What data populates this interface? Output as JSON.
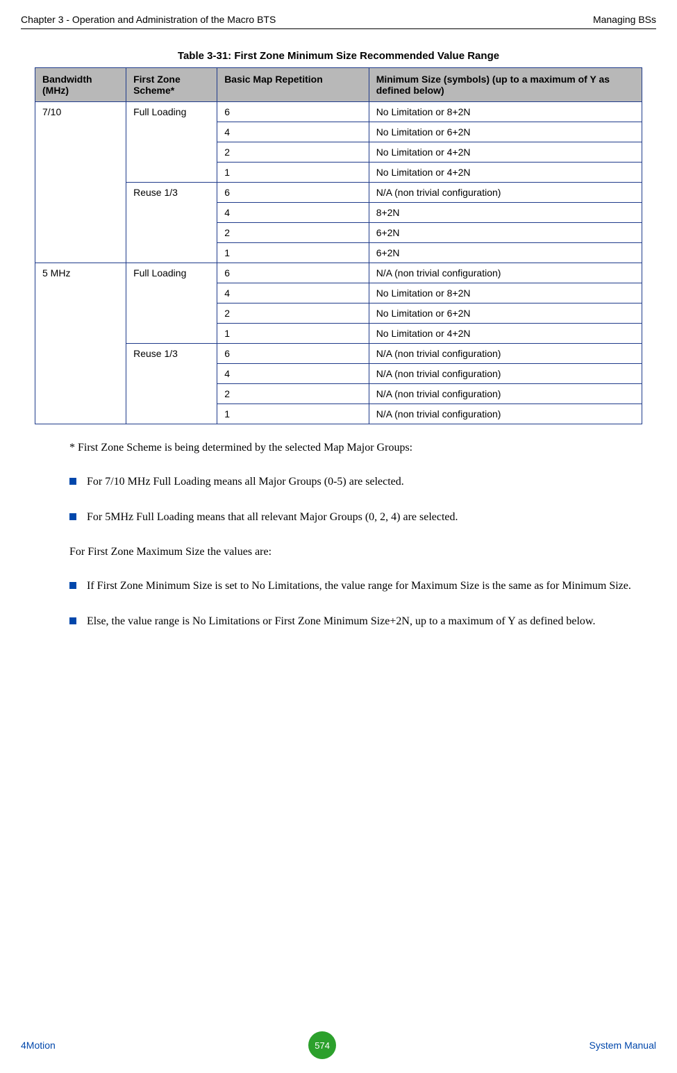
{
  "header": {
    "left": "Chapter 3 - Operation and Administration of the Macro BTS",
    "right": "Managing BSs"
  },
  "table": {
    "caption": "Table 3-31: First Zone Minimum Size Recommended Value Range",
    "headers": {
      "bandwidth": "Bandwidth (MHz)",
      "scheme": "First Zone Scheme*",
      "repetition": "Basic Map Repetition",
      "minsize": "Minimum Size (symbols) (up to a maximum of Y as defined below)"
    },
    "groups": [
      {
        "bandwidth": "7/10",
        "schemes": [
          {
            "name": "Full Loading",
            "rows": [
              {
                "rep": "6",
                "min": "No Limitation or 8+2N"
              },
              {
                "rep": "4",
                "min": "No Limitation or 6+2N"
              },
              {
                "rep": "2",
                "min": "No Limitation or 4+2N"
              },
              {
                "rep": "1",
                "min": "No Limitation or 4+2N"
              }
            ]
          },
          {
            "name": "Reuse 1/3",
            "rows": [
              {
                "rep": "6",
                "min": "N/A (non trivial configuration)"
              },
              {
                "rep": "4",
                "min": "8+2N"
              },
              {
                "rep": "2",
                "min": "6+2N"
              },
              {
                "rep": "1",
                "min": "6+2N"
              }
            ]
          }
        ]
      },
      {
        "bandwidth": "5 MHz",
        "schemes": [
          {
            "name": "Full Loading",
            "rows": [
              {
                "rep": "6",
                "min": "N/A (non trivial configuration)"
              },
              {
                "rep": "4",
                "min": "No Limitation or 8+2N"
              },
              {
                "rep": "2",
                "min": "No Limitation or 6+2N"
              },
              {
                "rep": "1",
                "min": "No Limitation or 4+2N"
              }
            ]
          },
          {
            "name": "Reuse 1/3",
            "rows": [
              {
                "rep": "6",
                "min": "N/A (non trivial configuration)"
              },
              {
                "rep": "4",
                "min": "N/A (non trivial configuration)"
              },
              {
                "rep": "2",
                "min": "N/A (non trivial configuration)"
              },
              {
                "rep": "1",
                "min": "N/A (non trivial configuration)"
              }
            ]
          }
        ]
      }
    ]
  },
  "body": {
    "note": "* First Zone Scheme is being determined by the selected Map Major Groups:",
    "bullets1": [
      "For 7/10 MHz Full Loading means all Major Groups (0-5) are selected.",
      "For 5MHz Full Loading means that all relevant Major Groups (0, 2, 4) are selected."
    ],
    "para2": "For First Zone Maximum Size the values are:",
    "bullets2": [
      "If First Zone Minimum Size is set to No Limitations, the value range for Maximum Size is the same as for Minimum Size.",
      "Else, the value range is No Limitations or First Zone Minimum Size+2N, up to a maximum of Y as defined below."
    ]
  },
  "footer": {
    "left": "4Motion",
    "page": "574",
    "right": "System Manual"
  }
}
